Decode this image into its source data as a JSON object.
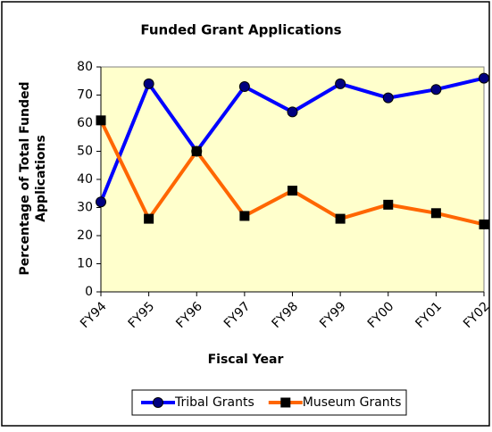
{
  "chart_data": {
    "type": "line",
    "title": "Funded Grant Applications",
    "ylabel": [
      "Percentage of Total Funded",
      "Applications"
    ],
    "xlabel": "Fiscal Year",
    "categories": [
      "FY94",
      "FY95",
      "FY96",
      "FY97",
      "FY98",
      "FY99",
      "FY00",
      "FY01",
      "FY02"
    ],
    "series": [
      {
        "name": "Tribal Grants",
        "color": "#0000ff",
        "marker": "circle",
        "values": [
          32,
          74,
          50,
          73,
          64,
          74,
          69,
          72,
          76
        ]
      },
      {
        "name": "Museum Grants",
        "color": "#ff6600",
        "marker": "square",
        "values": [
          61,
          26,
          50,
          27,
          36,
          26,
          31,
          28,
          24
        ]
      }
    ],
    "ylim": [
      0,
      80
    ],
    "yticks": [
      0,
      10,
      20,
      30,
      40,
      50,
      60,
      70,
      80
    ],
    "legend": "bottom",
    "background": "#ffffcc"
  }
}
